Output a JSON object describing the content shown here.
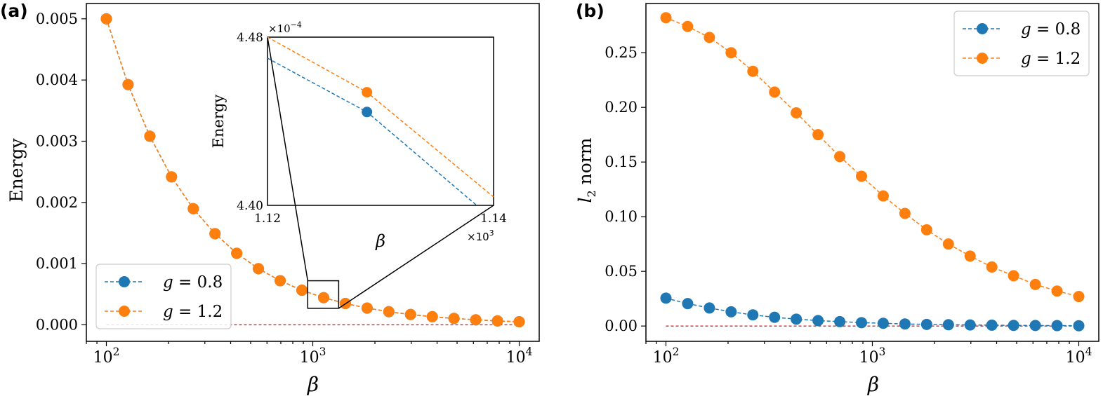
{
  "panels": {
    "left_label": "(a)",
    "right_label": "(b)"
  },
  "chart_data": [
    {
      "type": "line",
      "panel": "(a)",
      "xscale": "log",
      "xlim": [
        80,
        12500
      ],
      "ylim": [
        -0.00027,
        0.00525
      ],
      "xlabel": "β",
      "ylabel": "Energy",
      "x_ticks": [
        100,
        1000,
        10000
      ],
      "x_tick_labels": [
        {
          "base": "10",
          "exp": "2"
        },
        {
          "base": "10",
          "exp": "3"
        },
        {
          "base": "10",
          "exp": "4"
        }
      ],
      "y_ticks": [
        0.0,
        0.001,
        0.002,
        0.003,
        0.004,
        0.005
      ],
      "y_tick_labels": [
        "0.000",
        "0.001",
        "0.002",
        "0.003",
        "0.004",
        "0.005"
      ],
      "reference_line": {
        "y": 0,
        "color": "#d62728",
        "style": "dashed"
      },
      "x": [
        100,
        127.4,
        162.4,
        206.9,
        263.7,
        336.0,
        428.1,
        545.6,
        695.2,
        885.9,
        1128.8,
        1438.4,
        1832.9,
        2335.7,
        2976.4,
        3792.7,
        4832.9,
        6158.5,
        7847.6,
        10000
      ],
      "series": [
        {
          "name": "g = 0.8",
          "name_math": "g",
          "name_value": "0.8",
          "color": "#1f77b4",
          "values": [
            0.005,
            0.003925,
            0.003081,
            0.002417,
            0.001897,
            0.001489,
            0.001168,
            0.000917,
            0.00072,
            0.000565,
            0.000443,
            0.000348,
            0.000273,
            0.000214,
            0.000168,
            0.000132,
            0.000104,
            8.13e-05,
            6.38e-05,
            5e-05
          ]
        },
        {
          "name": "g = 1.2",
          "name_math": "g",
          "name_value": "1.2",
          "color": "#ff7f0e",
          "values": [
            0.005,
            0.003926,
            0.003082,
            0.002418,
            0.001898,
            0.00149,
            0.001169,
            0.000918,
            0.000721,
            0.000566,
            0.000444,
            0.000349,
            0.000274,
            0.000215,
            0.000169,
            0.000133,
            0.000105,
            8.2e-05,
            6.44e-05,
            5.05e-05
          ]
        }
      ],
      "legend": "lower-left",
      "zoom_box": {
        "xlim": [
          1120,
          1140
        ],
        "ylim": [
          0.00044,
          0.000448
        ]
      },
      "inset": {
        "xlim": [
          1.12,
          1.14
        ],
        "ylim": [
          4.4,
          4.48
        ],
        "xlabel": "β",
        "ylabel": "Energy",
        "x_tick_labels": [
          "1.12",
          "1.14"
        ],
        "y_tick_labels": [
          "4.40",
          "4.48"
        ],
        "x_multiplier": {
          "base": "×10",
          "exp": "3"
        },
        "y_multiplier": {
          "base": "×10",
          "exp": "−4"
        },
        "series": [
          {
            "name": "g = 0.8",
            "color": "#1f77b4",
            "x": [
              1.12,
              1.1288,
              1.1385
            ],
            "y": [
              4.47,
              4.4444,
              4.4
            ]
          },
          {
            "name": "g = 1.2",
            "color": "#ff7f0e",
            "x": [
              1.12,
              1.1288,
              1.14
            ],
            "y": [
              4.48,
              4.4538,
              4.404
            ]
          }
        ],
        "markers": [
          {
            "series": 0,
            "x": 1.1288,
            "y": 4.4444
          },
          {
            "series": 1,
            "x": 1.1288,
            "y": 4.4538
          }
        ]
      }
    },
    {
      "type": "line",
      "panel": "(b)",
      "xscale": "log",
      "xlim": [
        80,
        12500
      ],
      "ylim": [
        -0.014,
        0.295
      ],
      "xlabel": "β",
      "ylabel": "l2 norm",
      "x_ticks": [
        100,
        1000,
        10000
      ],
      "x_tick_labels": [
        {
          "base": "10",
          "exp": "2"
        },
        {
          "base": "10",
          "exp": "3"
        },
        {
          "base": "10",
          "exp": "4"
        }
      ],
      "y_ticks": [
        0.0,
        0.05,
        0.1,
        0.15,
        0.2,
        0.25
      ],
      "y_tick_labels": [
        "0.00",
        "0.05",
        "0.10",
        "0.15",
        "0.20",
        "0.25"
      ],
      "reference_line": {
        "y": 0,
        "color": "#d62728",
        "style": "dashed"
      },
      "x": [
        100,
        127.4,
        162.4,
        206.9,
        263.7,
        336.0,
        428.1,
        545.6,
        695.2,
        885.9,
        1128.8,
        1438.4,
        1832.9,
        2335.7,
        2976.4,
        3792.7,
        4832.9,
        6158.5,
        7847.6,
        10000
      ],
      "series": [
        {
          "name": "g = 0.8",
          "name_math": "g",
          "name_value": "0.8",
          "color": "#1f77b4",
          "values": [
            0.0255,
            0.0205,
            0.0165,
            0.013,
            0.0102,
            0.008,
            0.0063,
            0.005,
            0.004,
            0.0031,
            0.0025,
            0.0019,
            0.0015,
            0.0012,
            0.001,
            0.0008,
            0.0006,
            0.0005,
            0.0004,
            0.0003
          ]
        },
        {
          "name": "g = 1.2",
          "name_math": "g",
          "name_value": "1.2",
          "color": "#ff7f0e",
          "values": [
            0.282,
            0.274,
            0.264,
            0.25,
            0.233,
            0.214,
            0.195,
            0.175,
            0.155,
            0.137,
            0.119,
            0.103,
            0.088,
            0.075,
            0.064,
            0.054,
            0.046,
            0.038,
            0.032,
            0.027
          ]
        }
      ],
      "legend": "upper-right"
    }
  ]
}
